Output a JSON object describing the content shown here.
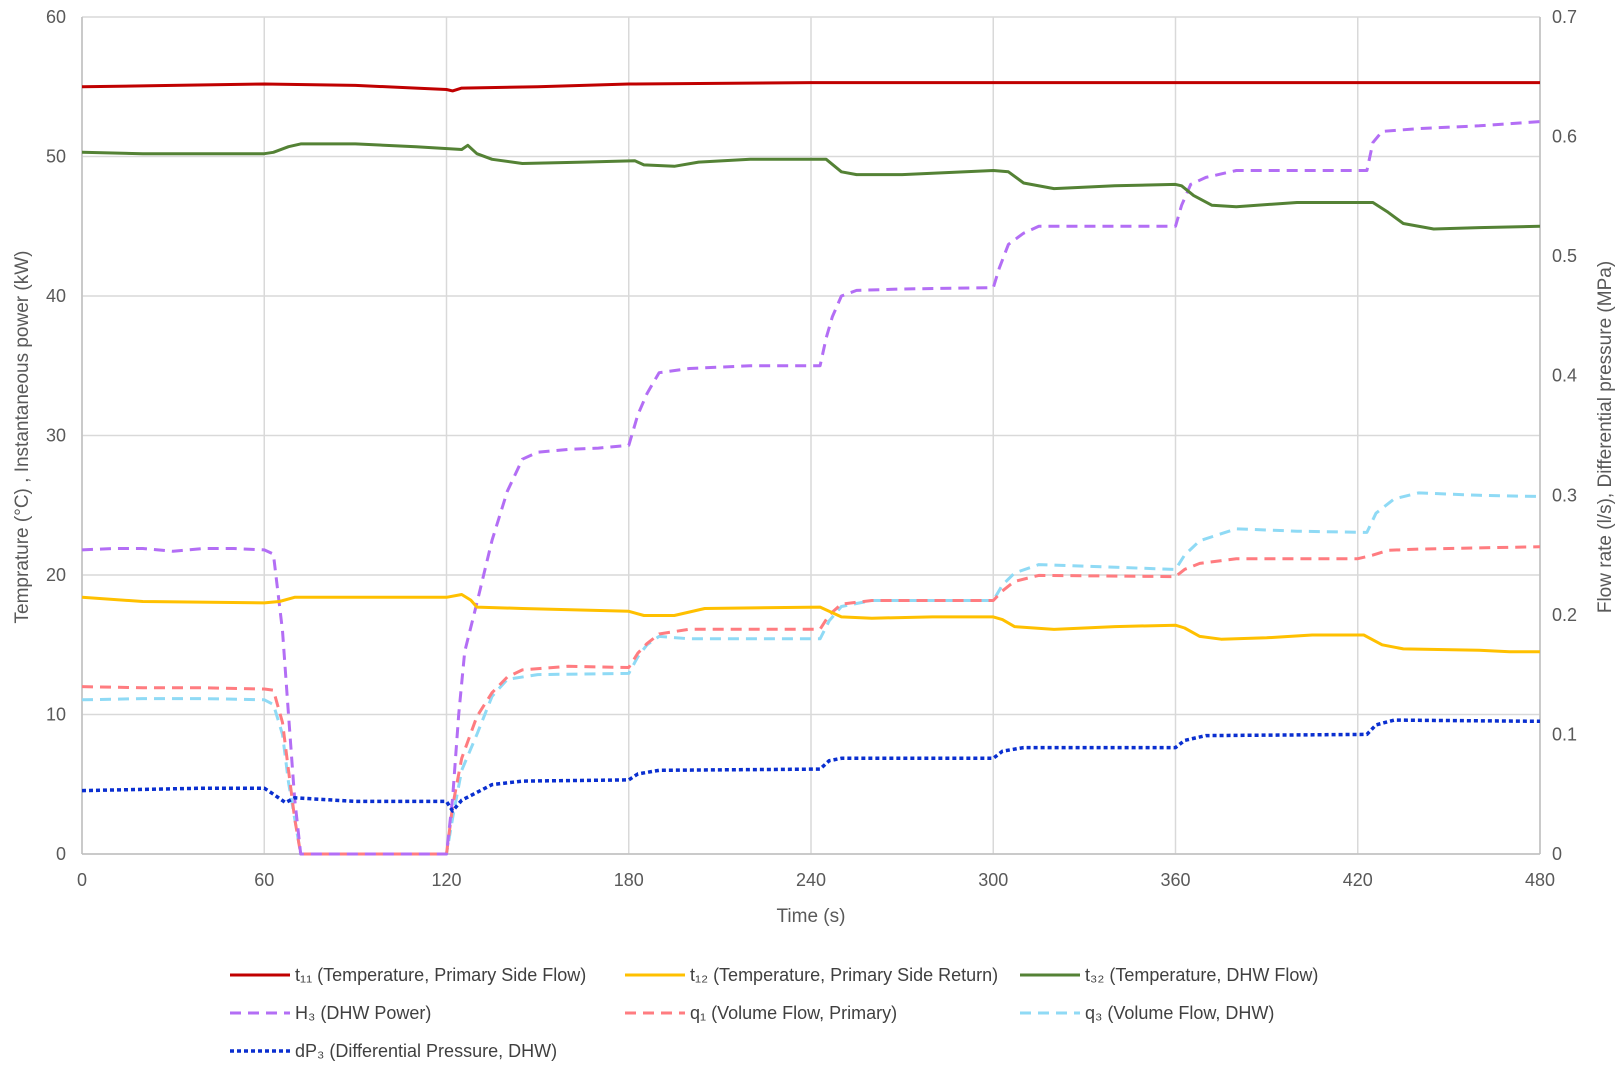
{
  "chart_data": {
    "type": "line",
    "title": "",
    "xlabel": "Time (s)",
    "ylabel_left": "Temprature (°C) , Instantaneous power (kW)",
    "ylabel_right": "Flow rate (l/s), Differential pressure (MPa)",
    "xlim": [
      0,
      480
    ],
    "ylim_left": [
      0,
      60
    ],
    "ylim_right": [
      0,
      0.7
    ],
    "x_ticks": [
      "0",
      "60",
      "120",
      "180",
      "240",
      "300",
      "360",
      "420",
      "480"
    ],
    "y_left_ticks": [
      "0",
      "10",
      "20",
      "30",
      "40",
      "50",
      "60"
    ],
    "y_right_ticks": [
      "0",
      "0.1",
      "0.2",
      "0.3",
      "0.4",
      "0.5",
      "0.6",
      "0.7"
    ],
    "grid": true,
    "legend_position": "bottom",
    "series": [
      {
        "name": "t₁₁ (Temperature, Primary Side Flow)",
        "axis": "left",
        "color": "#c00000",
        "dash": "solid",
        "points": [
          [
            0,
            55.0
          ],
          [
            30,
            55.1
          ],
          [
            60,
            55.2
          ],
          [
            90,
            55.1
          ],
          [
            110,
            54.9
          ],
          [
            120,
            54.8
          ],
          [
            122,
            54.7
          ],
          [
            125,
            54.9
          ],
          [
            150,
            55.0
          ],
          [
            180,
            55.2
          ],
          [
            240,
            55.3
          ],
          [
            300,
            55.3
          ],
          [
            360,
            55.3
          ],
          [
            420,
            55.3
          ],
          [
            480,
            55.3
          ]
        ]
      },
      {
        "name": "t₁₂ (Temperature, Primary Side Return)",
        "axis": "left",
        "color": "#ffc000",
        "dash": "solid",
        "points": [
          [
            0,
            18.4
          ],
          [
            20,
            18.1
          ],
          [
            60,
            18.0
          ],
          [
            65,
            18.1
          ],
          [
            70,
            18.4
          ],
          [
            120,
            18.4
          ],
          [
            125,
            18.6
          ],
          [
            128,
            18.2
          ],
          [
            130,
            17.7
          ],
          [
            145,
            17.6
          ],
          [
            180,
            17.4
          ],
          [
            185,
            17.1
          ],
          [
            195,
            17.1
          ],
          [
            205,
            17.6
          ],
          [
            243,
            17.7
          ],
          [
            250,
            17.0
          ],
          [
            260,
            16.9
          ],
          [
            280,
            17.0
          ],
          [
            300,
            17.0
          ],
          [
            303,
            16.8
          ],
          [
            307,
            16.3
          ],
          [
            320,
            16.1
          ],
          [
            340,
            16.3
          ],
          [
            360,
            16.4
          ],
          [
            363,
            16.2
          ],
          [
            368,
            15.6
          ],
          [
            375,
            15.4
          ],
          [
            390,
            15.5
          ],
          [
            405,
            15.7
          ],
          [
            422,
            15.7
          ],
          [
            428,
            15.0
          ],
          [
            435,
            14.7
          ],
          [
            460,
            14.6
          ],
          [
            470,
            14.5
          ],
          [
            480,
            14.5
          ]
        ]
      },
      {
        "name": "t₃₂ (Temperature, DHW Flow)",
        "axis": "left",
        "color": "#548235",
        "dash": "solid",
        "points": [
          [
            0,
            50.3
          ],
          [
            20,
            50.2
          ],
          [
            40,
            50.2
          ],
          [
            60,
            50.2
          ],
          [
            63,
            50.3
          ],
          [
            68,
            50.7
          ],
          [
            72,
            50.9
          ],
          [
            90,
            50.9
          ],
          [
            110,
            50.7
          ],
          [
            125,
            50.5
          ],
          [
            127,
            50.8
          ],
          [
            130,
            50.2
          ],
          [
            135,
            49.8
          ],
          [
            145,
            49.5
          ],
          [
            165,
            49.6
          ],
          [
            182,
            49.7
          ],
          [
            185,
            49.4
          ],
          [
            195,
            49.3
          ],
          [
            203,
            49.6
          ],
          [
            220,
            49.8
          ],
          [
            245,
            49.8
          ],
          [
            250,
            48.9
          ],
          [
            255,
            48.7
          ],
          [
            270,
            48.7
          ],
          [
            300,
            49.0
          ],
          [
            305,
            48.9
          ],
          [
            310,
            48.1
          ],
          [
            320,
            47.7
          ],
          [
            340,
            47.9
          ],
          [
            360,
            48.0
          ],
          [
            362,
            47.9
          ],
          [
            366,
            47.2
          ],
          [
            372,
            46.5
          ],
          [
            380,
            46.4
          ],
          [
            400,
            46.7
          ],
          [
            425,
            46.7
          ],
          [
            430,
            46.0
          ],
          [
            435,
            45.2
          ],
          [
            445,
            44.8
          ],
          [
            460,
            44.9
          ],
          [
            480,
            45.0
          ]
        ]
      },
      {
        "name": "H₃ (DHW Power)",
        "axis": "left",
        "color": "#b36ef5",
        "dash": "dashed",
        "points": [
          [
            0,
            21.8
          ],
          [
            10,
            21.9
          ],
          [
            20,
            21.9
          ],
          [
            30,
            21.7
          ],
          [
            40,
            21.9
          ],
          [
            50,
            21.9
          ],
          [
            60,
            21.8
          ],
          [
            63,
            21.5
          ],
          [
            66,
            16
          ],
          [
            68,
            10
          ],
          [
            70,
            4
          ],
          [
            72,
            0
          ],
          [
            80,
            0
          ],
          [
            100,
            0
          ],
          [
            120,
            0
          ],
          [
            122,
            4
          ],
          [
            124,
            10
          ],
          [
            126,
            14.5
          ],
          [
            130,
            18
          ],
          [
            135,
            22.5
          ],
          [
            140,
            26
          ],
          [
            145,
            28.3
          ],
          [
            150,
            28.8
          ],
          [
            160,
            29
          ],
          [
            170,
            29.1
          ],
          [
            180,
            29.3
          ],
          [
            183,
            31.5
          ],
          [
            186,
            33
          ],
          [
            190,
            34.5
          ],
          [
            200,
            34.8
          ],
          [
            220,
            35
          ],
          [
            243,
            35
          ],
          [
            245,
            37
          ],
          [
            247,
            38.5
          ],
          [
            250,
            40
          ],
          [
            255,
            40.4
          ],
          [
            270,
            40.5
          ],
          [
            300,
            40.6
          ],
          [
            302,
            42
          ],
          [
            305,
            43.7
          ],
          [
            310,
            44.5
          ],
          [
            315,
            45
          ],
          [
            330,
            45
          ],
          [
            360,
            45
          ],
          [
            362,
            46.5
          ],
          [
            365,
            48
          ],
          [
            370,
            48.5
          ],
          [
            380,
            49
          ],
          [
            400,
            49
          ],
          [
            423,
            49
          ],
          [
            425,
            51
          ],
          [
            428,
            51.8
          ],
          [
            440,
            52
          ],
          [
            460,
            52.2
          ],
          [
            480,
            52.5
          ]
        ]
      },
      {
        "name": "q₁ (Volume Flow, Primary)",
        "axis": "right",
        "color": "#ff7c80",
        "dash": "dashed",
        "points": [
          [
            0,
            0.14
          ],
          [
            20,
            0.139
          ],
          [
            40,
            0.139
          ],
          [
            60,
            0.138
          ],
          [
            63,
            0.137
          ],
          [
            66,
            0.11
          ],
          [
            68,
            0.07
          ],
          [
            70,
            0.03
          ],
          [
            72,
            0
          ],
          [
            120,
            0
          ],
          [
            122,
            0.04
          ],
          [
            125,
            0.08
          ],
          [
            130,
            0.115
          ],
          [
            135,
            0.135
          ],
          [
            140,
            0.148
          ],
          [
            145,
            0.154
          ],
          [
            160,
            0.157
          ],
          [
            180,
            0.156
          ],
          [
            183,
            0.168
          ],
          [
            186,
            0.176
          ],
          [
            190,
            0.184
          ],
          [
            200,
            0.188
          ],
          [
            243,
            0.188
          ],
          [
            246,
            0.2
          ],
          [
            250,
            0.209
          ],
          [
            260,
            0.212
          ],
          [
            300,
            0.212
          ],
          [
            303,
            0.22
          ],
          [
            307,
            0.228
          ],
          [
            315,
            0.233
          ],
          [
            360,
            0.232
          ],
          [
            363,
            0.238
          ],
          [
            368,
            0.243
          ],
          [
            380,
            0.247
          ],
          [
            420,
            0.247
          ],
          [
            425,
            0.25
          ],
          [
            430,
            0.254
          ],
          [
            440,
            0.255
          ],
          [
            460,
            0.256
          ],
          [
            480,
            0.257
          ]
        ]
      },
      {
        "name": "q₃ (Volume Flow, DHW)",
        "axis": "right",
        "color": "#8fdaf5",
        "dash": "dashed",
        "points": [
          [
            0,
            0.129
          ],
          [
            20,
            0.13
          ],
          [
            40,
            0.13
          ],
          [
            60,
            0.129
          ],
          [
            63,
            0.125
          ],
          [
            66,
            0.1
          ],
          [
            68,
            0.06
          ],
          [
            70,
            0.03
          ],
          [
            72,
            0
          ],
          [
            120,
            0
          ],
          [
            122,
            0.03
          ],
          [
            125,
            0.07
          ],
          [
            130,
            0.1
          ],
          [
            135,
            0.132
          ],
          [
            140,
            0.146
          ],
          [
            150,
            0.15
          ],
          [
            180,
            0.151
          ],
          [
            183,
            0.165
          ],
          [
            186,
            0.175
          ],
          [
            190,
            0.182
          ],
          [
            200,
            0.18
          ],
          [
            243,
            0.18
          ],
          [
            246,
            0.195
          ],
          [
            250,
            0.207
          ],
          [
            260,
            0.212
          ],
          [
            300,
            0.212
          ],
          [
            303,
            0.225
          ],
          [
            307,
            0.235
          ],
          [
            315,
            0.242
          ],
          [
            360,
            0.238
          ],
          [
            363,
            0.25
          ],
          [
            368,
            0.262
          ],
          [
            380,
            0.272
          ],
          [
            400,
            0.27
          ],
          [
            423,
            0.269
          ],
          [
            426,
            0.285
          ],
          [
            432,
            0.297
          ],
          [
            440,
            0.302
          ],
          [
            460,
            0.3
          ],
          [
            480,
            0.299
          ]
        ]
      },
      {
        "name": "dP₃ (Differential Pressure, DHW)",
        "axis": "right",
        "color": "#0a2fd0",
        "dash": "dotted",
        "points": [
          [
            0,
            0.053
          ],
          [
            20,
            0.054
          ],
          [
            40,
            0.055
          ],
          [
            60,
            0.055
          ],
          [
            63,
            0.05
          ],
          [
            67,
            0.043
          ],
          [
            70,
            0.047
          ],
          [
            90,
            0.044
          ],
          [
            120,
            0.044
          ],
          [
            122,
            0.036
          ],
          [
            125,
            0.045
          ],
          [
            135,
            0.058
          ],
          [
            145,
            0.061
          ],
          [
            180,
            0.062
          ],
          [
            183,
            0.067
          ],
          [
            190,
            0.07
          ],
          [
            243,
            0.071
          ],
          [
            246,
            0.078
          ],
          [
            250,
            0.08
          ],
          [
            300,
            0.08
          ],
          [
            303,
            0.086
          ],
          [
            310,
            0.089
          ],
          [
            360,
            0.089
          ],
          [
            363,
            0.095
          ],
          [
            370,
            0.099
          ],
          [
            423,
            0.1
          ],
          [
            426,
            0.108
          ],
          [
            432,
            0.112
          ],
          [
            480,
            0.111
          ]
        ]
      }
    ]
  }
}
